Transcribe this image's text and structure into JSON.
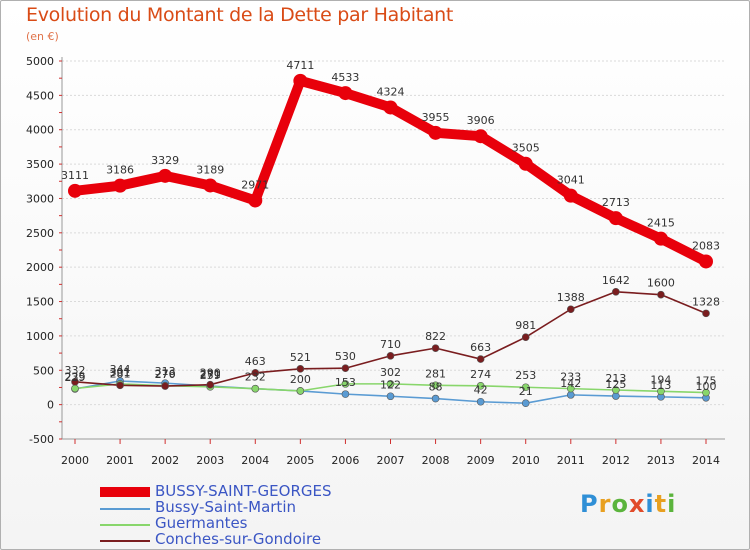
{
  "title": "Evolution du Montant de la Dette par Habitant",
  "unit_label": "(en €)",
  "logo_text": "Proxiti",
  "chart_data": {
    "type": "line",
    "x": [
      "2000",
      "2001",
      "2002",
      "2003",
      "2004",
      "2005",
      "2006",
      "2007",
      "2008",
      "2009",
      "2010",
      "2011",
      "2012",
      "2013",
      "2014"
    ],
    "ylim": [
      -500,
      5000
    ],
    "yticks": [
      "-500",
      "0",
      "500",
      "1000",
      "1500",
      "2000",
      "2500",
      "3000",
      "3500",
      "4000",
      "4500",
      "5000"
    ],
    "legend_position": "bottom-left",
    "series": [
      {
        "name": "BUSSY-SAINT-GEORGES",
        "color": "#e8000b",
        "values": [
          3111,
          3186,
          3329,
          3189,
          2971,
          4711,
          4533,
          4324,
          3955,
          3906,
          3505,
          3041,
          2713,
          2415,
          2083
        ],
        "labels": [
          "3111",
          "3186",
          "3329",
          "3189",
          "2971",
          "4711",
          "4533",
          "4324",
          "3955",
          "3906",
          "3505",
          "3041",
          "2713",
          "2415",
          "2083"
        ]
      },
      {
        "name": "Bussy-Saint-Martin",
        "color": "#5a9bd3",
        "values": [
          229,
          344,
          313,
          271,
          232,
          200,
          153,
          122,
          88,
          42,
          21,
          142,
          125,
          113,
          100
        ],
        "labels": [
          "229",
          "344",
          "313",
          "271",
          "232",
          "200",
          "153",
          "122",
          "88",
          "42",
          "21",
          "142",
          "125",
          "113",
          "100"
        ]
      },
      {
        "name": "Guermantes",
        "color": "#88d66b",
        "values": [
          235,
          301,
          276,
          259,
          232,
          200,
          302,
          302,
          281,
          274,
          253,
          233,
          213,
          194,
          175
        ],
        "labels": [
          "235",
          "301",
          "276",
          "259",
          "",
          "",
          "",
          "302",
          "281",
          "274",
          "253",
          "233",
          "213",
          "194",
          "175"
        ]
      },
      {
        "name": "Conches-sur-Gondoire",
        "color": "#7a1d1f",
        "values": [
          332,
          281,
          270,
          290,
          463,
          521,
          530,
          710,
          822,
          663,
          981,
          1388,
          1642,
          1600,
          1328
        ],
        "labels": [
          "332",
          "281",
          "270",
          "290",
          "463",
          "521",
          "530",
          "710",
          "822",
          "663",
          "981",
          "1388",
          "1642",
          "1600",
          "1328"
        ]
      }
    ]
  }
}
